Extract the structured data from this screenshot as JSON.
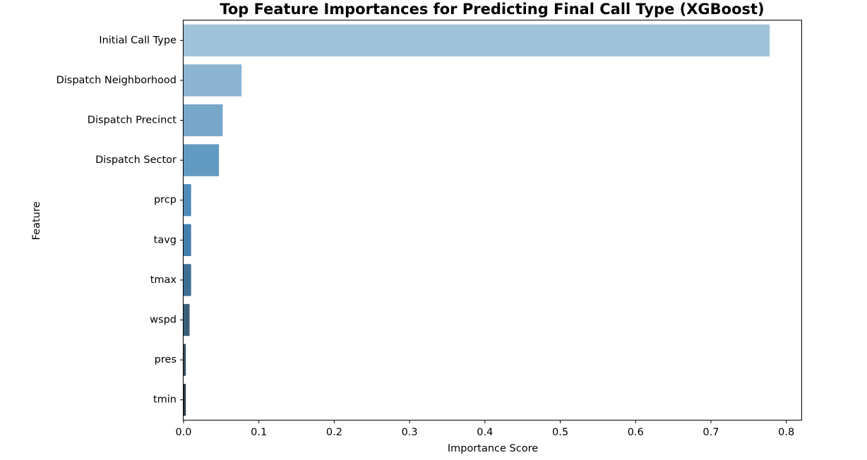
{
  "chart_data": {
    "type": "bar",
    "orientation": "horizontal",
    "title": "Top Feature Importances for Predicting Final Call Type (XGBoost)",
    "xlabel": "Importance Score",
    "ylabel": "Feature",
    "categories": [
      "Initial Call Type",
      "Dispatch Neighborhood",
      "Dispatch Precinct",
      "Dispatch Sector",
      "prcp",
      "tavg",
      "tmax",
      "wspd",
      "pres",
      "tmin"
    ],
    "values": [
      0.778,
      0.077,
      0.052,
      0.047,
      0.01,
      0.01,
      0.01,
      0.008,
      0.003,
      0.003
    ],
    "colors": [
      "#a0c3d9",
      "#8db4d1",
      "#79a7ca",
      "#639ac2",
      "#4f8ab8",
      "#437fad",
      "#3d6f93",
      "#3a5f7b",
      "#374e62",
      "#2e3a47"
    ],
    "xlim": [
      0,
      0.82
    ],
    "xticks": [
      0.0,
      0.1,
      0.2,
      0.3,
      0.4,
      0.5,
      0.6,
      0.7,
      0.8
    ],
    "xtick_labels": [
      "0.0",
      "0.1",
      "0.2",
      "0.3",
      "0.4",
      "0.5",
      "0.6",
      "0.7",
      "0.8"
    ],
    "grid": false,
    "legend": "none"
  }
}
